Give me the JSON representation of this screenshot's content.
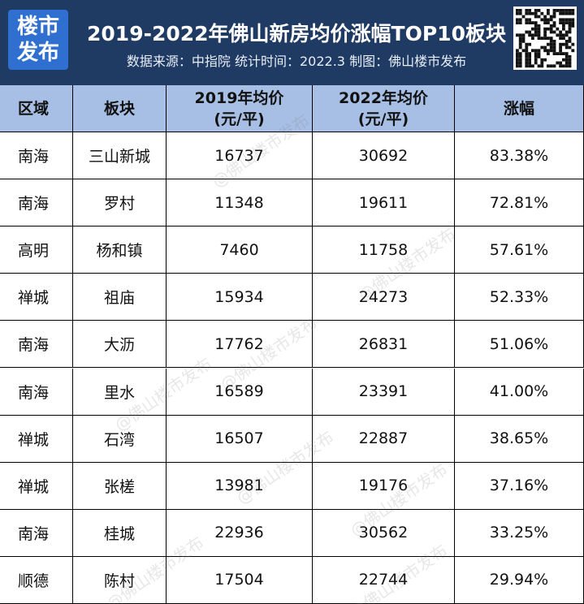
{
  "header": {
    "logo": [
      "楼市",
      "发布"
    ],
    "title": "2019-2022年佛山新房均价涨幅TOP10板块",
    "subtitle": "数据来源：中指院 统计时间：2022.3 制图：佛山楼市发布"
  },
  "watermark": "@佛山楼市发布",
  "table": {
    "columns": [
      [
        "区域"
      ],
      [
        "板块"
      ],
      [
        "2019年均价",
        "(元/平)"
      ],
      [
        "2022年均价",
        "(元/平)"
      ],
      [
        "涨幅"
      ]
    ],
    "rows": [
      [
        "南海",
        "三山新城",
        "16737",
        "30692",
        "83.38%"
      ],
      [
        "南海",
        "罗村",
        "11348",
        "19611",
        "72.81%"
      ],
      [
        "高明",
        "杨和镇",
        "7460",
        "11758",
        "57.61%"
      ],
      [
        "禅城",
        "祖庙",
        "15934",
        "24273",
        "52.33%"
      ],
      [
        "南海",
        "大沥",
        "17762",
        "26831",
        "51.06%"
      ],
      [
        "南海",
        "里水",
        "16589",
        "23391",
        "41.00%"
      ],
      [
        "禅城",
        "石湾",
        "16507",
        "22887",
        "38.65%"
      ],
      [
        "禅城",
        "张槎",
        "13981",
        "19176",
        "37.16%"
      ],
      [
        "南海",
        "桂城",
        "22936",
        "30562",
        "33.25%"
      ],
      [
        "顺德",
        "陈村",
        "17504",
        "22744",
        "29.94%"
      ]
    ]
  }
}
